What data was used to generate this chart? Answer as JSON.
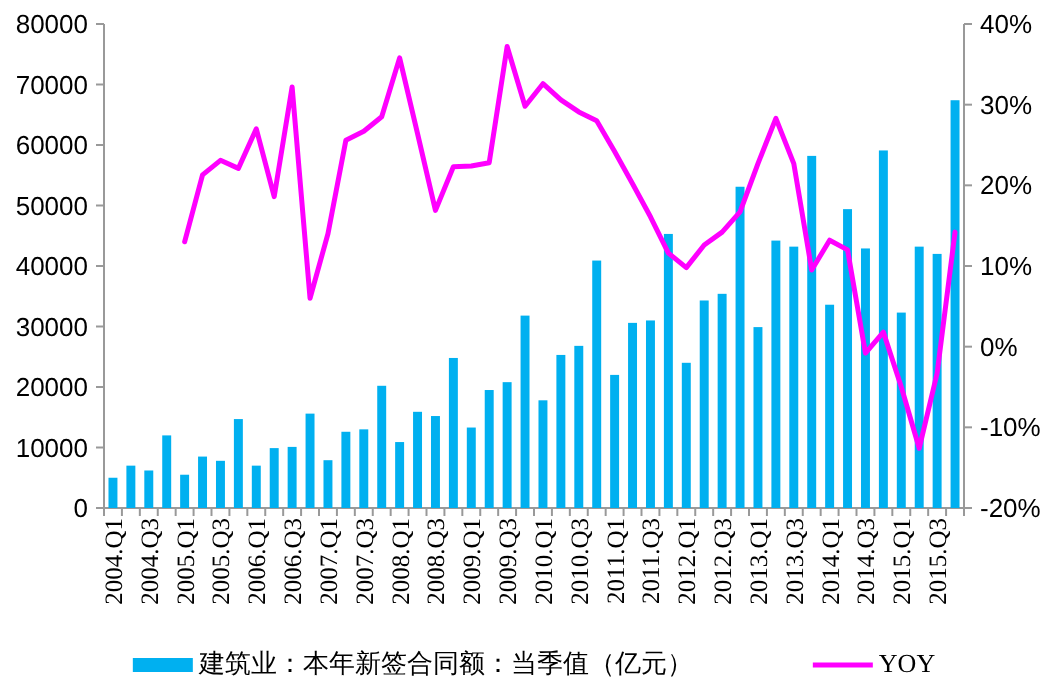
{
  "chart_data": {
    "type": "bar",
    "categories": [
      "2004.Q1",
      null,
      "2004.Q3",
      null,
      "2005.Q1",
      null,
      "2005.Q3",
      null,
      "2006.Q1",
      null,
      "2006.Q3",
      null,
      "2007.Q1",
      null,
      "2007.Q3",
      null,
      "2008.Q1",
      null,
      "2008.Q3",
      null,
      "2009.Q1",
      null,
      "2009.Q3",
      null,
      "2010.Q1",
      null,
      "2010.Q3",
      null,
      "2011.Q1",
      null,
      "2011.Q3",
      null,
      "2012.Q1",
      null,
      "2012.Q3",
      null,
      "2013.Q1",
      null,
      "2013.Q3",
      null,
      "2014.Q1",
      null,
      "2014.Q3",
      null,
      "2015.Q1",
      null,
      "2015.Q3",
      null
    ],
    "series": [
      {
        "name": "建筑业：本年新签合同额：当季值（亿元）",
        "color": "#00b0f0",
        "values": [
          5000,
          7000,
          6200,
          12000,
          5500,
          8500,
          7800,
          14700,
          7000,
          9900,
          10100,
          15600,
          7900,
          12600,
          13000,
          20200,
          10900,
          15900,
          15200,
          24800,
          13300,
          19500,
          20800,
          31800,
          17800,
          25300,
          26800,
          40900,
          22000,
          30600,
          31000,
          45300,
          24000,
          34300,
          35400,
          53100,
          29900,
          44200,
          43200,
          58200,
          33600,
          49400,
          42900,
          59100,
          32300,
          43200,
          42000,
          67400
        ]
      },
      {
        "name": "YOY",
        "type": "line",
        "axis": "y2",
        "color": "#ff00ff",
        "values": [
          null,
          null,
          null,
          null,
          13.0,
          21.3,
          23.1,
          22.1,
          27.0,
          18.6,
          32.2,
          6.0,
          14.0,
          25.6,
          26.7,
          28.5,
          35.8,
          26.4,
          16.9,
          22.3,
          22.4,
          22.8,
          37.2,
          29.8,
          32.6,
          30.6,
          29.1,
          28.0,
          24.2,
          20.2,
          16.1,
          11.6,
          9.8,
          12.6,
          14.2,
          16.7,
          22.7,
          28.3,
          22.7,
          9.5,
          13.2,
          12.0,
          -0.8,
          1.8,
          -5.0,
          -12.6,
          -3.3,
          14.2
        ]
      }
    ],
    "ylim": [
      0,
      80000
    ],
    "yticks": [
      0,
      10000,
      20000,
      30000,
      40000,
      50000,
      60000,
      70000,
      80000
    ],
    "y2lim": [
      -20,
      40
    ],
    "y2ticks": [
      {
        "value": -20,
        "label": "-20%"
      },
      {
        "value": -10,
        "label": "-10%"
      },
      {
        "value": 0,
        "label": "0%"
      },
      {
        "value": 10,
        "label": "10%"
      },
      {
        "value": 20,
        "label": "20%"
      },
      {
        "value": 30,
        "label": "30%"
      },
      {
        "value": 40,
        "label": "40%"
      }
    ],
    "grid": false,
    "legend": "bottom"
  }
}
